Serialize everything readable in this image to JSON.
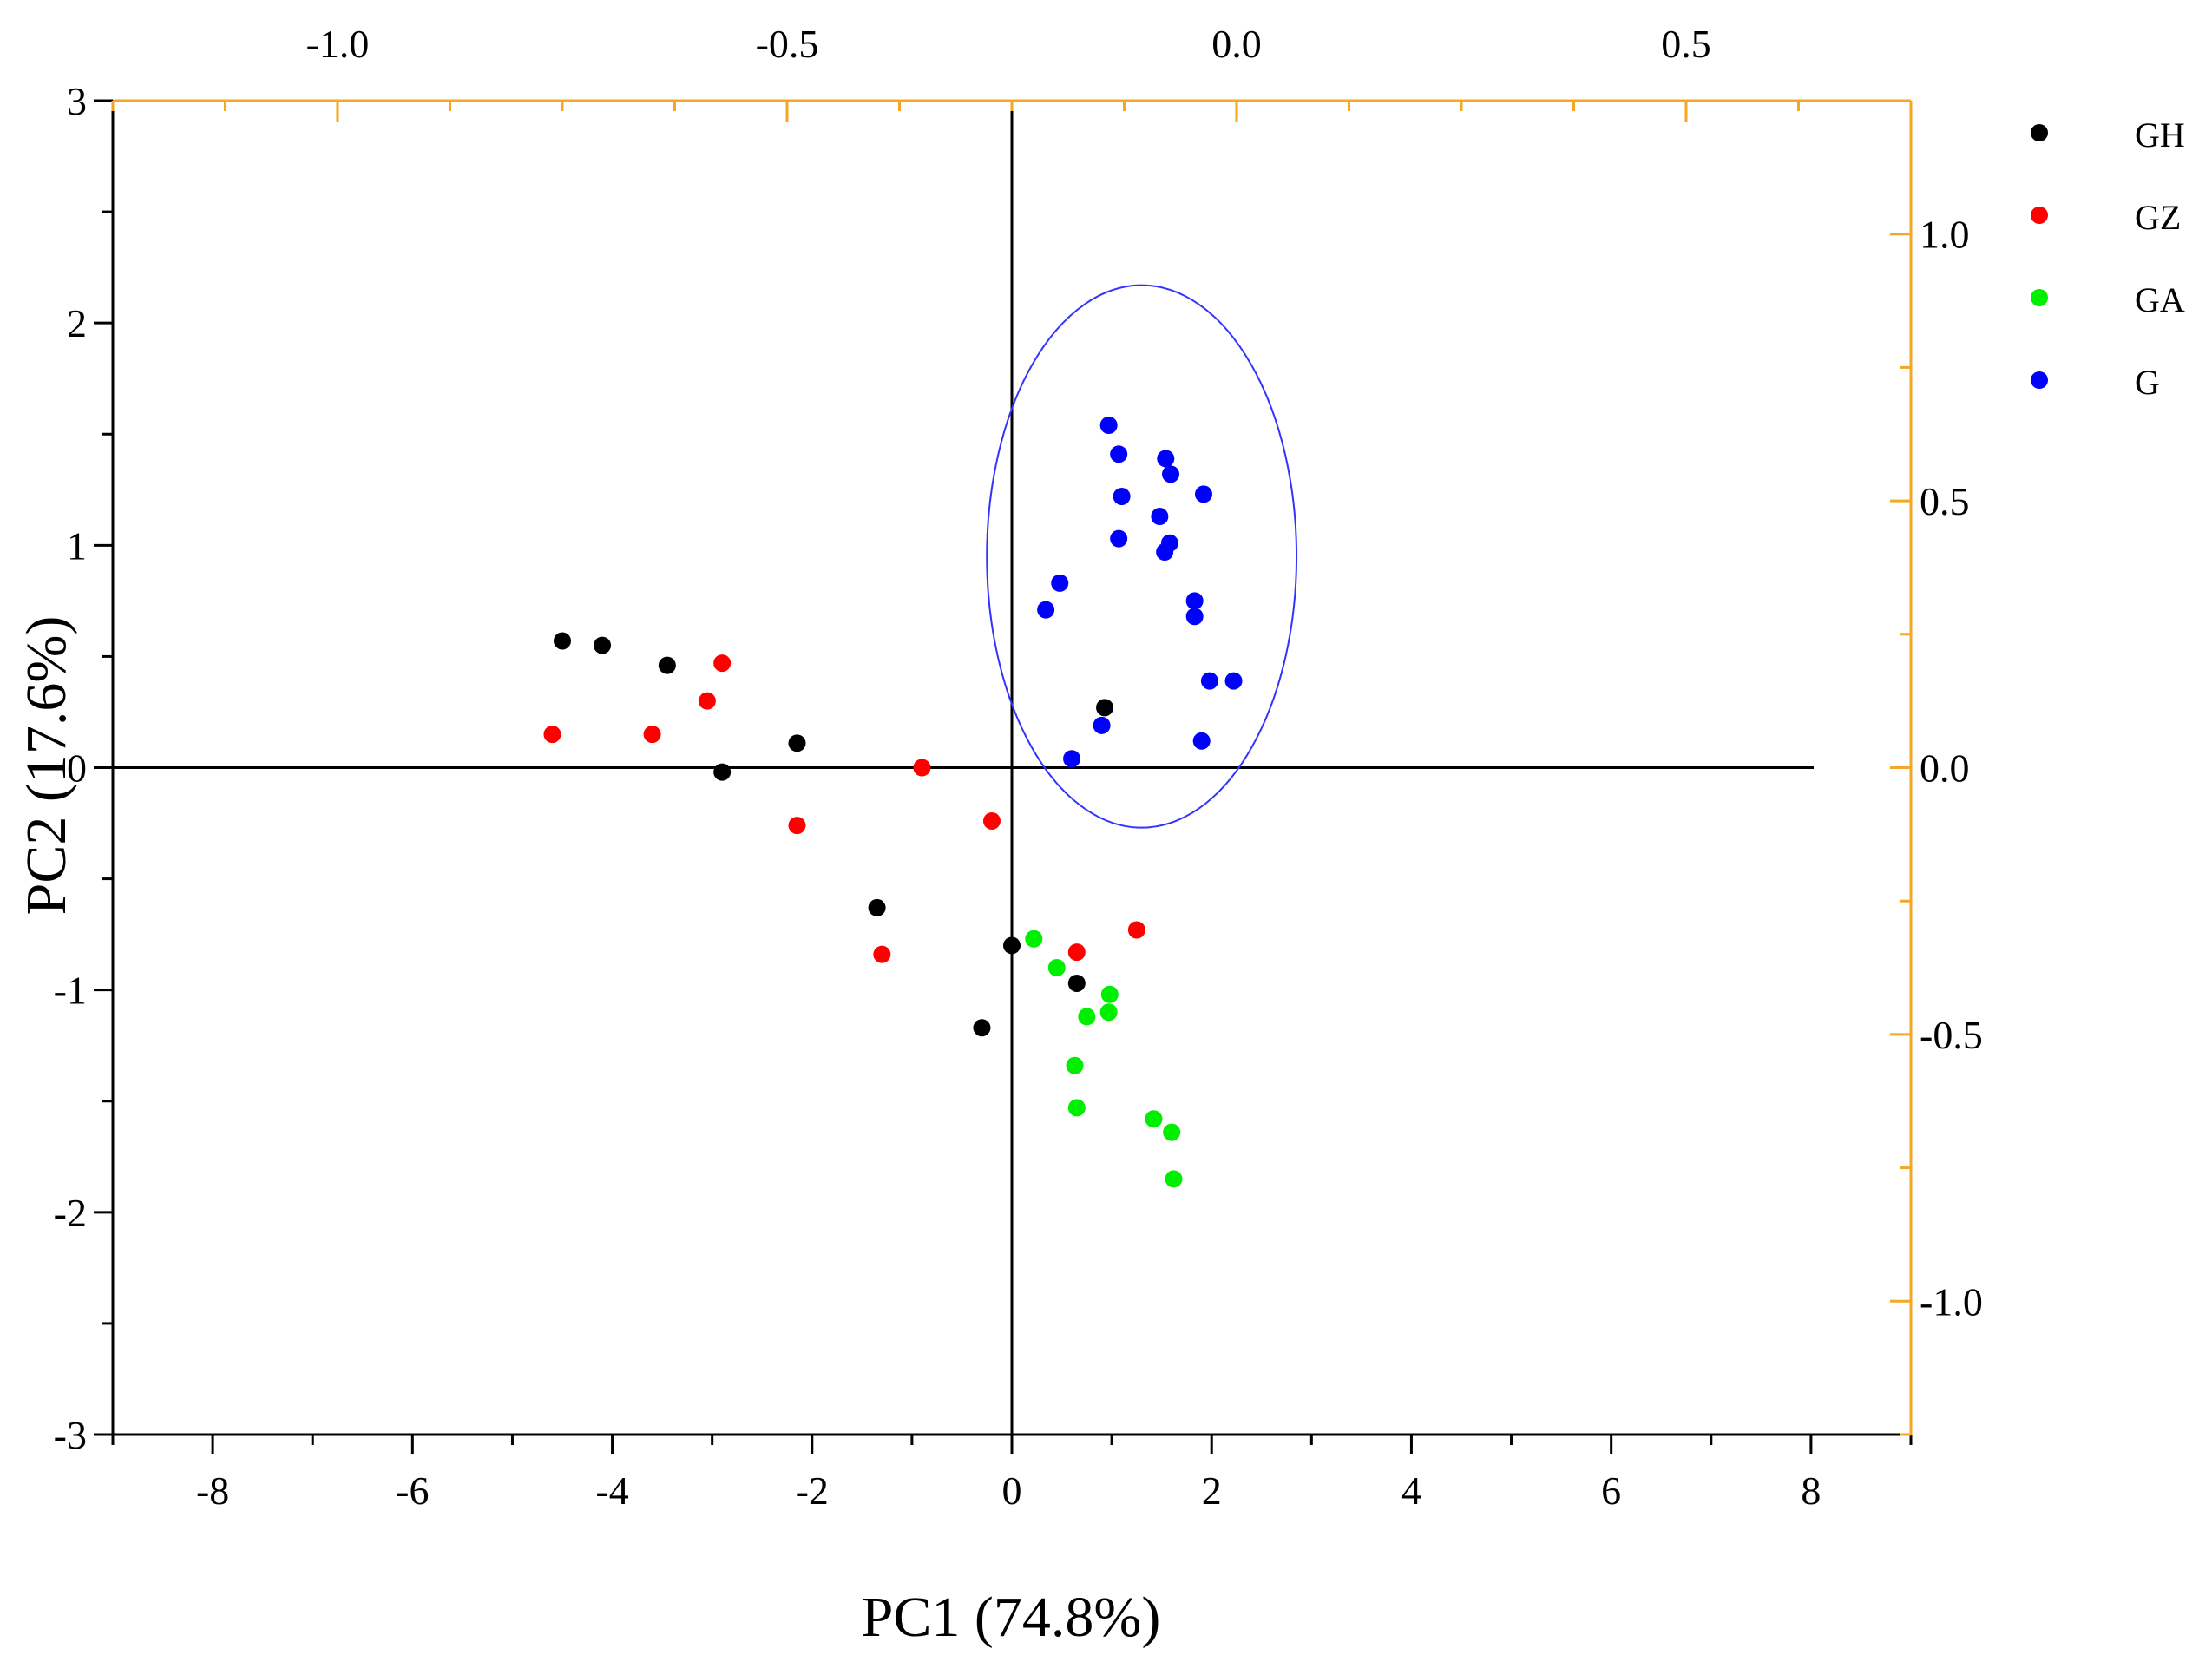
{
  "chart_data": {
    "type": "scatter",
    "xlabel": "PC1 (74.8%)",
    "ylabel": "PC2 (17.6%)",
    "xlim": [
      -9,
      9
    ],
    "ylim": [
      -3,
      3
    ],
    "x_ticks": [
      "-8",
      "-6",
      "-4",
      "-2",
      "0",
      "2",
      "4",
      "6",
      "8"
    ],
    "y_ticks": [
      "-3",
      "-2",
      "-1",
      "0",
      "1",
      "2",
      "3"
    ],
    "top_axis": {
      "lim": [
        -1.25,
        0.75
      ],
      "ticks": [
        "-1.0",
        "-0.5",
        "0.0",
        "0.5"
      ],
      "color": "#f5a623"
    },
    "right_axis": {
      "lim": [
        -1.25,
        1.25
      ],
      "ticks": [
        "-1.0",
        "-0.5",
        "0.0",
        "0.5",
        "1.0"
      ],
      "color": "#f5a623"
    },
    "legend_position": "top-right",
    "series": [
      {
        "name": "GH",
        "color": "#000000",
        "points": [
          [
            -4.5,
            0.57
          ],
          [
            -4.1,
            0.55
          ],
          [
            -3.45,
            0.46
          ],
          [
            -2.9,
            -0.02
          ],
          [
            -2.15,
            0.11
          ],
          [
            -1.35,
            -0.63
          ],
          [
            0.0,
            -0.8
          ],
          [
            -0.3,
            -1.17
          ],
          [
            0.65,
            -0.97
          ],
          [
            0.93,
            0.27
          ]
        ]
      },
      {
        "name": "GZ",
        "color": "#ff0000",
        "points": [
          [
            -4.6,
            0.15
          ],
          [
            -3.6,
            0.15
          ],
          [
            -3.05,
            0.3
          ],
          [
            -2.9,
            0.47
          ],
          [
            -2.15,
            -0.26
          ],
          [
            -0.9,
            0.0
          ],
          [
            -0.2,
            -0.24
          ],
          [
            -1.3,
            -0.84
          ],
          [
            0.65,
            -0.83
          ],
          [
            1.25,
            -0.73
          ]
        ]
      },
      {
        "name": "GA",
        "color": "#00ee00",
        "points": [
          [
            0.22,
            -0.77
          ],
          [
            0.45,
            -0.9
          ],
          [
            0.75,
            -1.12
          ],
          [
            0.98,
            -1.02
          ],
          [
            0.97,
            -1.1
          ],
          [
            0.63,
            -1.34
          ],
          [
            0.65,
            -1.53
          ],
          [
            1.42,
            -1.58
          ],
          [
            1.6,
            -1.64
          ],
          [
            1.62,
            -1.85
          ]
        ]
      },
      {
        "name": "G",
        "color": "#0000ff",
        "points": [
          [
            0.97,
            1.54
          ],
          [
            1.07,
            1.41
          ],
          [
            1.54,
            1.39
          ],
          [
            1.59,
            1.32
          ],
          [
            1.1,
            1.22
          ],
          [
            1.92,
            1.23
          ],
          [
            1.48,
            1.13
          ],
          [
            1.58,
            1.01
          ],
          [
            1.53,
            0.97
          ],
          [
            1.07,
            1.03
          ],
          [
            0.48,
            0.83
          ],
          [
            0.34,
            0.71
          ],
          [
            1.83,
            0.75
          ],
          [
            1.83,
            0.68
          ],
          [
            1.98,
            0.39
          ],
          [
            2.22,
            0.39
          ],
          [
            0.9,
            0.19
          ],
          [
            1.9,
            0.12
          ],
          [
            0.6,
            0.04
          ]
        ]
      }
    ],
    "ellipse": {
      "color": "#3333ff",
      "center": [
        1.3,
        0.95
      ],
      "rx": 1.55,
      "ry": 1.22
    }
  }
}
